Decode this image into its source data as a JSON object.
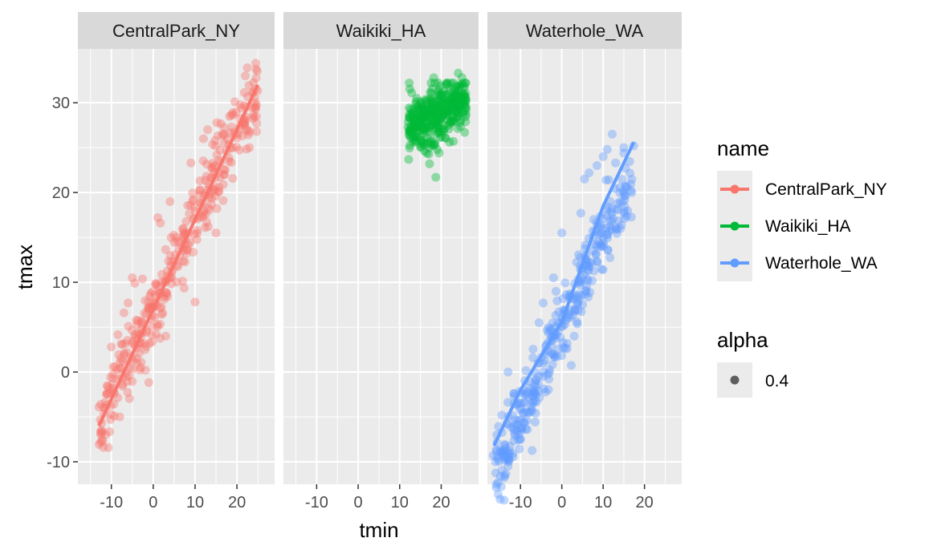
{
  "chart_data": {
    "type": "scatter",
    "title": "",
    "xlabel": "tmin",
    "ylabel": "tmax",
    "xlim": [
      -18,
      29
    ],
    "ylim": [
      -12.5,
      36
    ],
    "x_ticks": [
      -10,
      0,
      10,
      20
    ],
    "x_tick_labels": [
      "-10",
      "0",
      "10",
      "20"
    ],
    "y_ticks": [
      -10,
      0,
      10,
      20,
      30
    ],
    "y_tick_labels": [
      "-10",
      "0",
      "10",
      "20",
      "30"
    ],
    "grid": true,
    "legend_position": "right",
    "facets": [
      "CentralPark_NY",
      "Waikiki_HA",
      "Waterhole_WA"
    ],
    "colors": {
      "CentralPark_NY": "#f8766d",
      "Waikiki_HA": "#00ba38",
      "Waterhole_WA": "#619cff"
    },
    "point_alpha": 0.4,
    "series": [
      {
        "name": "CentralPark_NY",
        "color": "#f8766d",
        "trend": [
          [
            -13,
            -6
          ],
          [
            25,
            32
          ]
        ],
        "cluster": {
          "x_range": [
            -13,
            25
          ],
          "slope": 1.0,
          "intercept": 7,
          "spread": 2.2,
          "n": 365
        },
        "points": [
          [
            -12.1,
            -7.7
          ],
          [
            -10,
            2.8
          ],
          [
            -9.3,
            -4.9
          ],
          [
            -8,
            -5
          ],
          [
            -7,
            6.6
          ],
          [
            -6,
            7.7
          ],
          [
            -5,
            10.5
          ],
          [
            -4.4,
            9.9
          ],
          [
            -3,
            0.5
          ],
          [
            1.1,
            17.2
          ],
          [
            1.7,
            16.6
          ],
          [
            3,
            4
          ],
          [
            4,
            19
          ],
          [
            5.5,
            15
          ],
          [
            9,
            23.3
          ],
          [
            10,
            7.8
          ],
          [
            12,
            26
          ],
          [
            13,
            27
          ],
          [
            15,
            15.5
          ],
          [
            17,
            22
          ],
          [
            19,
            28.9
          ],
          [
            21,
            29.4
          ],
          [
            22,
            33
          ],
          [
            23,
            25
          ],
          [
            24.5,
            34.4
          ]
        ]
      },
      {
        "name": "Waikiki_HA",
        "color": "#00ba38",
        "trend": [
          [
            12.5,
            28.9
          ],
          [
            16,
            27
          ],
          [
            20,
            29.3
          ],
          [
            25,
            32.2
          ]
        ],
        "cluster": {
          "x_range": [
            12,
            26
          ],
          "slope": 0.2,
          "intercept": 25,
          "spread": 1.6,
          "n": 365
        },
        "points": [
          [
            12.3,
            32.2
          ],
          [
            12.9,
            31.1
          ],
          [
            13.1,
            26.7
          ],
          [
            14.1,
            30.5
          ],
          [
            15.5,
            25.6
          ],
          [
            16.5,
            24.4
          ],
          [
            17.2,
            23.2
          ],
          [
            18.2,
            32.8
          ],
          [
            18.7,
            21.7
          ],
          [
            19.5,
            24.4
          ],
          [
            21,
            26.1
          ],
          [
            22,
            25.6
          ],
          [
            23,
            32.2
          ],
          [
            24.1,
            33.3
          ],
          [
            25,
            32.8
          ],
          [
            25.6,
            31.7
          ]
        ]
      },
      {
        "name": "Waterhole_WA",
        "color": "#619cff",
        "trend": [
          [
            -16.4,
            -8.2
          ],
          [
            -10,
            -2
          ],
          [
            0,
            5.6
          ],
          [
            10,
            18.5
          ],
          [
            17.4,
            25.6
          ]
        ],
        "cluster": {
          "x_range": [
            -16,
            17
          ],
          "slope": 1.0,
          "intercept": 5,
          "spread": 2.0,
          "n": 365
        },
        "points": [
          [
            -16.6,
            -9.3
          ],
          [
            -16,
            -10
          ],
          [
            -14.5,
            -4.8
          ],
          [
            -14,
            -9
          ],
          [
            -13,
            -10.5
          ],
          [
            -13,
            0
          ],
          [
            -10,
            -7.5
          ],
          [
            -9.2,
            -2
          ],
          [
            -7,
            1.6
          ],
          [
            -5.5,
            5.5
          ],
          [
            -4.5,
            7.7
          ],
          [
            -2,
            10.5
          ],
          [
            0,
            15.5
          ],
          [
            3,
            4
          ],
          [
            4.6,
            17.7
          ],
          [
            5.5,
            21.5
          ],
          [
            6.6,
            22.2
          ],
          [
            7.7,
            17
          ],
          [
            8.5,
            23
          ],
          [
            10,
            24
          ],
          [
            11,
            24.8
          ],
          [
            12.2,
            26.5
          ],
          [
            13,
            23.3
          ],
          [
            15,
            25
          ],
          [
            17.4,
            25.2
          ]
        ]
      }
    ]
  },
  "legends": {
    "color": {
      "title": "name",
      "entries": [
        {
          "label": "CentralPark_NY",
          "color": "#f8766d"
        },
        {
          "label": "Waikiki_HA",
          "color": "#00ba38"
        },
        {
          "label": "Waterhole_WA",
          "color": "#619cff"
        }
      ]
    },
    "alpha": {
      "title": "alpha",
      "entries": [
        {
          "label": "0.4"
        }
      ]
    }
  }
}
